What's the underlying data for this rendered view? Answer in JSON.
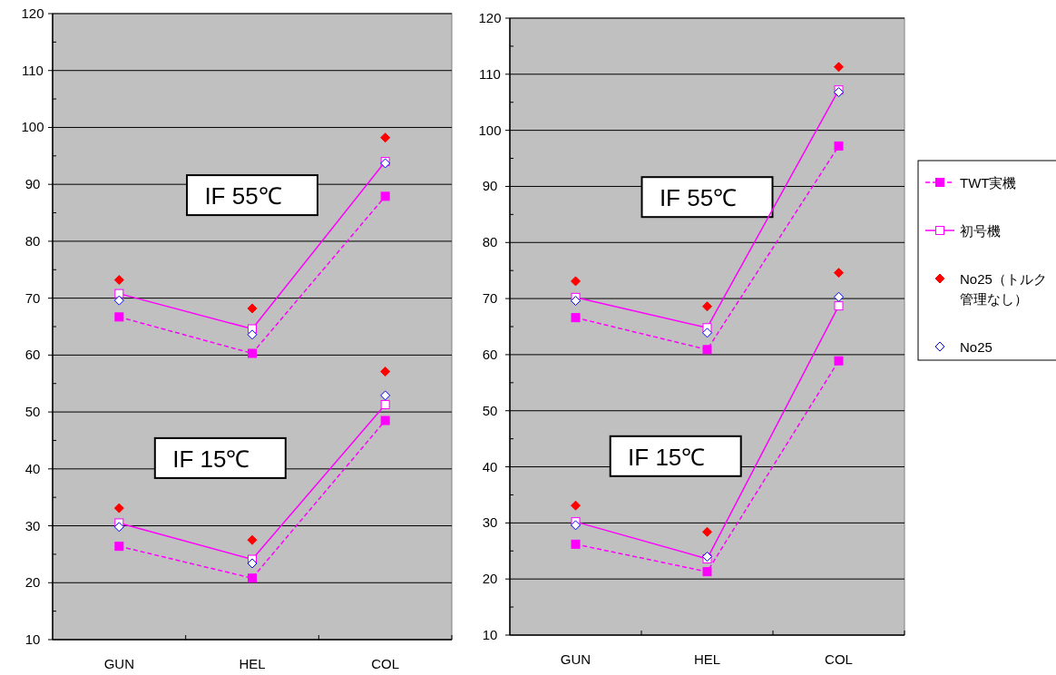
{
  "chart_data": [
    {
      "type": "line",
      "categories": [
        "GUN",
        "HEL",
        "COL"
      ],
      "ylim": [
        10,
        120
      ],
      "yticks": [
        10,
        20,
        30,
        40,
        50,
        60,
        70,
        80,
        90,
        100,
        110,
        120
      ],
      "grid": "y",
      "annotations": [
        "IF 55℃",
        "IF 15℃"
      ],
      "series": [
        {
          "type": "line",
          "color": "#ff00ff",
          "marker": "square",
          "line_style": "dashed",
          "values": [
            66.7,
            60.3,
            87.9
          ]
        },
        {
          "type": "line",
          "color": "#ff00ff",
          "marker": "square",
          "line_style": "solid",
          "values": [
            70.8,
            64.6,
            94.0
          ]
        },
        {
          "type": "scatter",
          "color": "#ff0000",
          "marker": "diamond",
          "values": [
            73.2,
            68.2,
            98.2
          ]
        },
        {
          "type": "scatter",
          "color": "#0000ff",
          "marker": "diamond",
          "values": [
            69.6,
            63.6,
            93.7
          ]
        },
        {
          "type": "line",
          "color": "#ff00ff",
          "marker": "square",
          "line_style": "dashed",
          "values": [
            26.4,
            20.8,
            48.5
          ]
        },
        {
          "type": "line",
          "color": "#ff00ff",
          "marker": "square",
          "line_style": "solid",
          "values": [
            30.5,
            24.1,
            51.3
          ]
        },
        {
          "type": "scatter",
          "color": "#ff0000",
          "marker": "diamond",
          "values": [
            33.1,
            27.5,
            57.1
          ]
        },
        {
          "type": "scatter",
          "color": "#0000ff",
          "marker": "diamond",
          "values": [
            29.8,
            23.4,
            52.9
          ]
        }
      ]
    },
    {
      "type": "line",
      "categories": [
        "GUN",
        "HEL",
        "COL"
      ],
      "ylim": [
        10,
        120
      ],
      "yticks": [
        10,
        20,
        30,
        40,
        50,
        60,
        70,
        80,
        90,
        100,
        110,
        120
      ],
      "grid": "y",
      "legend": "right",
      "annotations": [
        "IF 55℃",
        "IF 15℃"
      ],
      "series": [
        {
          "type": "line",
          "name": "TWT実機",
          "color": "#ff00ff",
          "marker": "square",
          "line_style": "dashed",
          "values": [
            66.6,
            60.9,
            97.2
          ]
        },
        {
          "type": "line",
          "name": "初号機",
          "color": "#ff00ff",
          "marker": "square",
          "line_style": "solid",
          "values": [
            70.2,
            64.8,
            107.2
          ]
        },
        {
          "type": "scatter",
          "name": "No25（トルク管理なし）",
          "color": "#ff0000",
          "marker": "diamond",
          "values": [
            73.1,
            68.6,
            111.3
          ]
        },
        {
          "type": "scatter",
          "name": "No25",
          "color": "#0000ff",
          "marker": "diamond",
          "values": [
            69.6,
            63.9,
            106.8
          ]
        },
        {
          "type": "line",
          "color": "#ff00ff",
          "marker": "square",
          "line_style": "dashed",
          "values": [
            26.2,
            21.3,
            58.9
          ]
        },
        {
          "type": "line",
          "color": "#ff00ff",
          "marker": "square",
          "line_style": "solid",
          "values": [
            30.2,
            23.6,
            68.7
          ]
        },
        {
          "type": "scatter",
          "color": "#ff0000",
          "marker": "diamond",
          "values": [
            33.1,
            28.4,
            74.6
          ]
        },
        {
          "type": "scatter",
          "color": "#0000ff",
          "marker": "diamond",
          "values": [
            29.6,
            24.0,
            70.3
          ]
        }
      ]
    }
  ]
}
